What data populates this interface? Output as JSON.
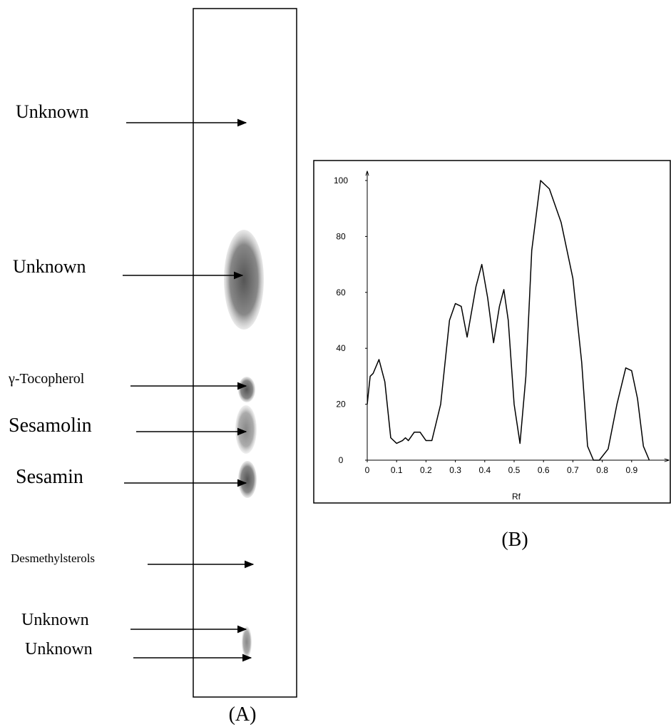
{
  "plate": {
    "labels": [
      "Unknown",
      "Unknown",
      "γ-Tocopherol",
      "Sesamolin",
      "Sesamin",
      "Desmethylsterols",
      "Unknown",
      "Unknown"
    ],
    "caption": "(A)"
  },
  "chart_data": {
    "type": "line",
    "caption": "(B)",
    "xlabel": "Rf",
    "x": [
      0,
      0.01,
      0.02,
      0.04,
      0.06,
      0.08,
      0.1,
      0.12,
      0.13,
      0.14,
      0.16,
      0.18,
      0.2,
      0.22,
      0.25,
      0.28,
      0.3,
      0.32,
      0.34,
      0.37,
      0.39,
      0.41,
      0.43,
      0.45,
      0.465,
      0.48,
      0.5,
      0.52,
      0.54,
      0.56,
      0.59,
      0.62,
      0.66,
      0.7,
      0.73,
      0.75,
      0.77,
      0.79,
      0.82,
      0.85,
      0.88,
      0.9,
      0.92,
      0.94,
      0.96
    ],
    "series": [
      {
        "color": "#000000",
        "values": [
          20,
          30,
          31,
          36,
          28,
          8,
          6,
          7,
          8,
          7,
          10,
          10,
          7,
          7,
          20,
          50,
          56,
          55,
          44,
          62,
          70,
          58,
          42,
          55,
          61,
          50,
          20,
          6,
          30,
          75,
          100,
          97,
          85,
          65,
          35,
          5,
          0,
          0,
          4,
          20,
          33,
          32,
          22,
          5,
          0
        ]
      }
    ],
    "xlim": [
      0,
      1.02
    ],
    "ylim": [
      0,
      103
    ],
    "xticks": [
      0,
      0.1,
      0.2,
      0.3,
      0.4,
      0.5,
      0.6,
      0.7,
      0.8,
      0.9
    ],
    "yticks": [
      0,
      20,
      40,
      60,
      80,
      100
    ]
  }
}
